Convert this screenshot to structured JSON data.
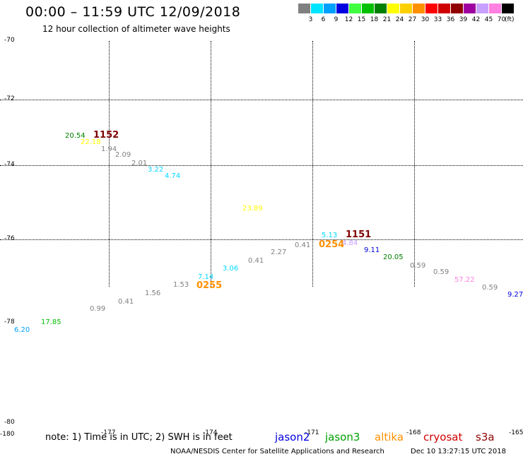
{
  "header": {
    "title": "00:00 – 11:59 UTC 12/09/2018",
    "subtitle": "12 hour collection of altimeter wave heights"
  },
  "legend": {
    "unit": "(ft)",
    "bins": [
      {
        "label": "3",
        "color": "#808080"
      },
      {
        "label": "6",
        "color": "#00e5ff"
      },
      {
        "label": "9",
        "color": "#00a0ff"
      },
      {
        "label": "12",
        "color": "#0000e0"
      },
      {
        "label": "15",
        "color": "#40ff40"
      },
      {
        "label": "18",
        "color": "#00c000"
      },
      {
        "label": "21",
        "color": "#008000"
      },
      {
        "label": "24",
        "color": "#ffff00"
      },
      {
        "label": "27",
        "color": "#ffd000"
      },
      {
        "label": "30",
        "color": "#ff9000"
      },
      {
        "label": "33",
        "color": "#ff0000"
      },
      {
        "label": "36",
        "color": "#d00000"
      },
      {
        "label": "39",
        "color": "#900000"
      },
      {
        "label": "42",
        "color": "#a000a0"
      },
      {
        "label": "45",
        "color": "#c8a0ff"
      },
      {
        "label": "70",
        "color": "#ff80e0"
      },
      {
        "label": "",
        "color": "#000000"
      }
    ]
  },
  "map": {
    "lat_ticks": [
      "-70",
      "-72",
      "-74",
      "-76",
      "-78",
      "-80"
    ],
    "lon_ticks": [
      "-180",
      "-177",
      "-174",
      "-171",
      "-168",
      "-165"
    ]
  },
  "observations": [
    {
      "text": "20.54",
      "color": "#008000"
    },
    {
      "text": "1152",
      "color": "#800000"
    },
    {
      "text": "22.18",
      "color": "#ffff00"
    },
    {
      "text": "1.94",
      "color": "#808080"
    },
    {
      "text": "2.09",
      "color": "#808080"
    },
    {
      "text": "2.01",
      "color": "#808080"
    },
    {
      "text": "3.22",
      "color": "#00d8ff"
    },
    {
      "text": "4.74",
      "color": "#00d8ff"
    },
    {
      "text": "23.89",
      "color": "#ffff00"
    },
    {
      "text": "5.13",
      "color": "#00d8ff"
    },
    {
      "text": "1151",
      "color": "#800000"
    },
    {
      "text": "0.41",
      "color": "#808080"
    },
    {
      "text": "0254",
      "color": "#ff9000"
    },
    {
      "text": "4.84",
      "color": "#c8a0ff"
    },
    {
      "text": "2.27",
      "color": "#808080"
    },
    {
      "text": "9.11",
      "color": "#0000e0"
    },
    {
      "text": "0.41",
      "color": "#808080"
    },
    {
      "text": "20.05",
      "color": "#008000"
    },
    {
      "text": "3.06",
      "color": "#00d8ff"
    },
    {
      "text": "0.59",
      "color": "#808080"
    },
    {
      "text": "0.59",
      "color": "#808080"
    },
    {
      "text": "7.14",
      "color": "#00d8ff"
    },
    {
      "text": "57.22",
      "color": "#ff80e0"
    },
    {
      "text": "1.53",
      "color": "#808080"
    },
    {
      "text": "0255",
      "color": "#ff9000"
    },
    {
      "text": "1.56",
      "color": "#808080"
    },
    {
      "text": "0.59",
      "color": "#808080"
    },
    {
      "text": "9.27",
      "color": "#0000e0"
    },
    {
      "text": "0.41",
      "color": "#808080"
    },
    {
      "text": "0.99",
      "color": "#808080"
    },
    {
      "text": "17.85",
      "color": "#00c000"
    },
    {
      "text": "6.20",
      "color": "#00a0ff"
    }
  ],
  "note": "note: 1) Time is in UTC; 2) SWH is in feet",
  "satellites": [
    {
      "name": "jason2",
      "color": "#0000e0"
    },
    {
      "name": "jason3",
      "color": "#00a000"
    },
    {
      "name": "altika",
      "color": "#ff9000"
    },
    {
      "name": "cryosat",
      "color": "#d00000"
    },
    {
      "name": "s3a",
      "color": "#900000"
    }
  ],
  "footer": {
    "credit": "NOAA/NESDIS Center for Satellite Applications and Research",
    "timestamp": "Dec 10 13:27:15 UTC 2018"
  }
}
